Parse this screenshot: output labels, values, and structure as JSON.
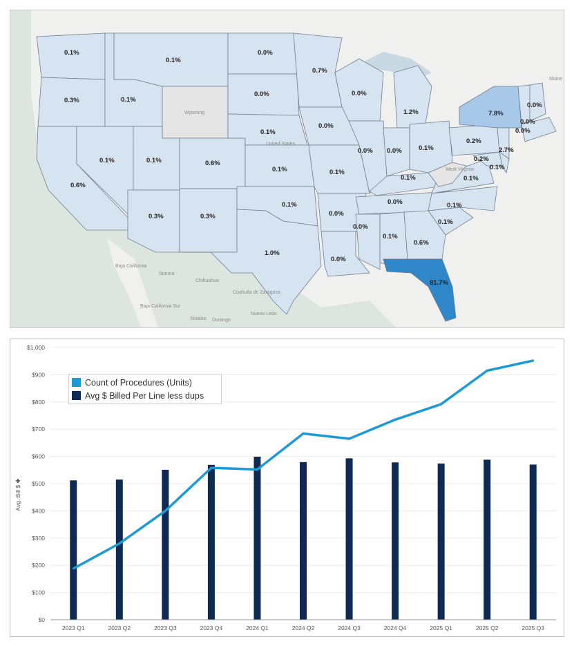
{
  "map": {
    "background_labels": {
      "wyoming": "Wyoming",
      "west_virginia": "West Virginia",
      "united_states": "United States",
      "maine": "Maine",
      "baja_california": "Baja California",
      "sonora": "Sonora",
      "chihuahua": "Chihuahua",
      "coahuila": "Coahuila de Zaragoza",
      "nuevo_leon": "Nuevo León",
      "baja_california_sur": "Baja California Sur",
      "sinaloa": "Sinaloa",
      "durango": "Durango"
    },
    "state_labels": {
      "WA": "0.1%",
      "OR": "0.3%",
      "CA": "0.6%",
      "ID": "0.1%",
      "NV": "0.1%",
      "MT": "0.1%",
      "UT": "0.1%",
      "AZ": "0.3%",
      "CO": "0.6%",
      "NM": "0.3%",
      "ND": "0.0%",
      "SD": "0.0%",
      "NE": "0.1%",
      "KS": "0.1%",
      "OK": "0.1%",
      "TX": "1.0%",
      "MN": "0.7%",
      "IA": "0.0%",
      "MO": "0.1%",
      "AR": "0.0%",
      "LA": "0.0%",
      "WI": "0.0%",
      "IL": "0.0%",
      "MI": "1.2%",
      "IN": "0.0%",
      "OH": "0.1%",
      "KY": "0.1%",
      "TN": "0.0%",
      "MS": "0.0%",
      "AL": "0.1%",
      "GA": "0.6%",
      "FL": "81.7%",
      "SC": "0.1%",
      "NC": "0.1%",
      "VA": "0.1%",
      "PA": "0.2%",
      "NY": "7.8%",
      "NJ": "2.7%",
      "MD": "0.2%",
      "DE": "0.1%",
      "VT": "0.0%",
      "NH": "0.0%",
      "MA": "0.0%"
    }
  },
  "colors": {
    "line": "#1c9ad6",
    "bar": "#0e2a52",
    "state_light": "#d6e4f2",
    "state_mid": "#a8c8ea",
    "state_dark": "#2f86c8",
    "state_none": "#e5e5e5"
  },
  "chart_data": {
    "type": "bar+line",
    "categories": [
      "2023 Q1",
      "2023 Q2",
      "2023 Q3",
      "2023 Q4",
      "2024 Q1",
      "2024 Q2",
      "2024 Q3",
      "2024 Q4",
      "2025 Q1",
      "2025 Q2",
      "2025 Q3"
    ],
    "series": [
      {
        "name": "Count of Procedures (Units)",
        "type": "line",
        "values": [
          188,
          280,
          400,
          558,
          552,
          684,
          665,
          735,
          792,
          915,
          952
        ]
      },
      {
        "name": "Avg $ Billed Per Line less dups",
        "type": "bar",
        "values": [
          512,
          515,
          551,
          569,
          599,
          579,
          593,
          578,
          574,
          588,
          570
        ]
      }
    ],
    "ylabel": "Avg. Bill $ ✚",
    "ylim": [
      0,
      1000
    ],
    "yticks": [
      "$0",
      "$100",
      "$200",
      "$300",
      "$400",
      "$500",
      "$600",
      "$700",
      "$800",
      "$900",
      "$1,000"
    ],
    "legend_position": "top-left"
  }
}
